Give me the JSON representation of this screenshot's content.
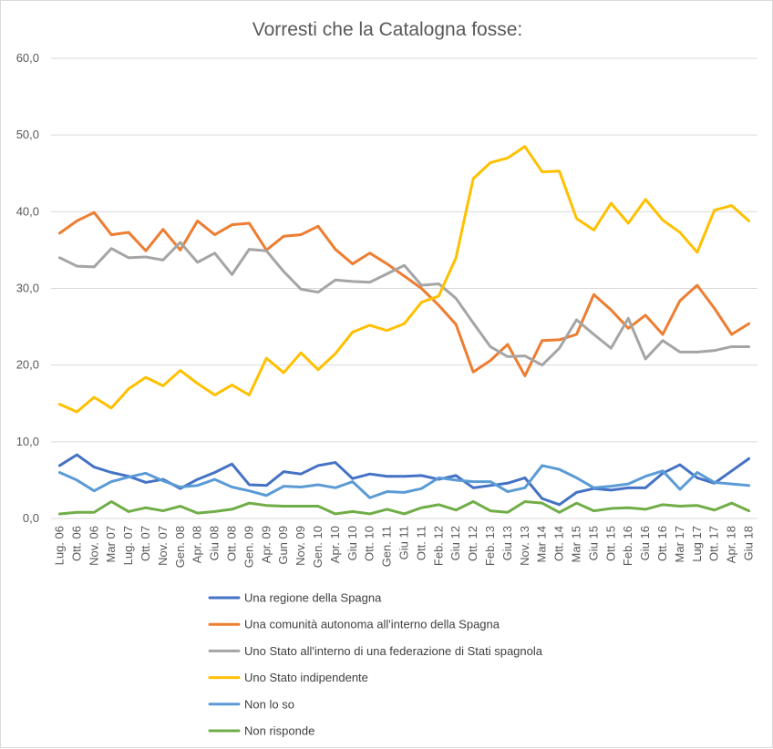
{
  "chart_data": {
    "type": "line",
    "title": "Vorresti che la Catalogna fosse:",
    "ylim": [
      0,
      60
    ],
    "y_ticks": [
      "0,0",
      "10,0",
      "20,0",
      "30,0",
      "40,0",
      "50,0",
      "60,0"
    ],
    "grid": "horizontal",
    "legend_position": "bottom",
    "categories": [
      "Lug. 06",
      "Ott. 06",
      "Nov. 06",
      "Mar 07",
      "Lug. 07",
      "Ott. 07",
      "Nov. 07",
      "Gen. 08",
      "Apr. 08",
      "Giu 08",
      "Ott. 08",
      "Gen. 09",
      "Apr. 09",
      "Gun 09",
      "Nov. 09",
      "Gen. 10",
      "Apr. 10",
      "Giu 10",
      "Ott. 10",
      "Gen. 11",
      "Giu 11",
      "Ott. 11",
      "Feb. 12",
      "Giu 12",
      "Ott. 12",
      "Feb. 13",
      "Giu 13",
      "Nov. 13",
      "Mar 14",
      "Ott. 14",
      "Mar 15",
      "Giu 15",
      "Ott. 15",
      "Feb. 16",
      "Giu 16",
      "Ott. 16",
      "Mar 17",
      "Lug 17",
      "Ott. 17",
      "Apr. 18",
      "Giu 18"
    ],
    "x": [
      "Lug. 06",
      "Ott. 06",
      "Nov. 06",
      "Mar 07",
      "Lug. 07",
      "Ott. 07",
      "Nov. 07",
      "Gen. 08",
      "Apr. 08",
      "Giu 08",
      "Ott. 08",
      "Gen. 09",
      "Apr. 09",
      "Gun 09",
      "Nov. 09",
      "Gen. 10",
      "Apr. 10",
      "Giu 10",
      "Ott. 10",
      "Gen. 11",
      "Giu 11",
      "Ott. 11",
      "Feb. 12",
      "Giu 12",
      "Ott. 12",
      "Feb. 13",
      "Giu 13",
      "Nov. 13",
      "Mar 14",
      "Ott. 14",
      "Mar 15",
      "Giu 15",
      "Ott. 15",
      "Feb. 16",
      "Giu 16",
      "Ott. 16",
      "Mar 17",
      "Lug 17",
      "Ott. 17",
      "Apr. 18",
      "Giu 18"
    ],
    "series": [
      {
        "name": "Una regione della Spagna",
        "color": "#4472C4",
        "values": [
          6.9,
          8.3,
          6.7,
          6.0,
          5.5,
          4.7,
          5.1,
          3.9,
          5.1,
          6.0,
          7.1,
          4.4,
          4.3,
          6.1,
          5.8,
          6.9,
          7.3,
          5.2,
          5.8,
          5.5,
          5.5,
          5.6,
          5.1,
          5.6,
          4.0,
          4.3,
          4.6,
          5.3,
          2.6,
          1.8,
          3.4,
          3.9,
          3.7,
          4.0,
          4.0,
          5.9,
          7.0,
          5.3,
          4.6,
          6.2,
          7.8
        ]
      },
      {
        "name": "Una comunità autonoma all'interno della Spagna",
        "color": "#ED7D31",
        "values": [
          37.2,
          38.8,
          39.9,
          37.0,
          37.3,
          34.9,
          37.7,
          35.0,
          38.8,
          37.0,
          38.3,
          38.5,
          35.0,
          36.8,
          37.0,
          38.1,
          35.1,
          33.2,
          34.6,
          33.2,
          31.6,
          30.0,
          27.8,
          25.3,
          19.1,
          20.6,
          22.7,
          18.6,
          23.2,
          23.3,
          24.0,
          29.2,
          27.2,
          24.8,
          26.5,
          24.0,
          28.4,
          30.4,
          27.4,
          24.0,
          25.4
        ]
      },
      {
        "name": "Uno Stato all'interno di una federazione di Stati spagnola",
        "color": "#A5A5A5",
        "values": [
          34.0,
          32.9,
          32.8,
          35.2,
          34.0,
          34.1,
          33.7,
          36.0,
          33.4,
          34.6,
          31.8,
          35.1,
          34.9,
          32.2,
          29.9,
          29.5,
          31.1,
          30.9,
          30.8,
          31.9,
          33.0,
          30.4,
          30.6,
          28.7,
          25.5,
          22.4,
          21.1,
          21.2,
          20.0,
          22.2,
          25.9,
          24.0,
          22.2,
          26.1,
          20.8,
          23.2,
          21.7,
          21.7,
          21.9,
          22.4,
          22.4
        ]
      },
      {
        "name": "Uno Stato indipendente",
        "color": "#FFC000",
        "values": [
          14.9,
          13.9,
          15.8,
          14.4,
          16.9,
          18.4,
          17.3,
          19.3,
          17.6,
          16.1,
          17.4,
          16.1,
          20.9,
          19.0,
          21.6,
          19.4,
          21.5,
          24.3,
          25.2,
          24.5,
          25.4,
          28.2,
          29.0,
          34.0,
          44.3,
          46.4,
          47.0,
          48.5,
          45.2,
          45.3,
          39.1,
          37.6,
          41.1,
          38.5,
          41.6,
          38.9,
          37.3,
          34.7,
          40.2,
          40.8,
          38.8
        ]
      },
      {
        "name": "Non lo so",
        "color": "#5B9BD5",
        "values": [
          6.0,
          5.0,
          3.6,
          4.8,
          5.4,
          5.9,
          4.9,
          4.1,
          4.3,
          5.1,
          4.1,
          3.6,
          3.0,
          4.2,
          4.1,
          4.4,
          4.0,
          4.8,
          2.7,
          3.5,
          3.4,
          3.9,
          5.3,
          5.0,
          4.8,
          4.8,
          3.5,
          4.0,
          6.9,
          6.4,
          5.3,
          4.0,
          4.2,
          4.5,
          5.5,
          6.2,
          3.8,
          6.0,
          4.7,
          4.5,
          4.3
        ]
      },
      {
        "name": "Non risponde",
        "color": "#70AD47",
        "values": [
          0.6,
          0.8,
          0.8,
          2.2,
          0.9,
          1.4,
          1.0,
          1.6,
          0.7,
          0.9,
          1.2,
          2.0,
          1.7,
          1.6,
          1.6,
          1.6,
          0.6,
          0.9,
          0.6,
          1.2,
          0.6,
          1.4,
          1.8,
          1.1,
          2.2,
          1.0,
          0.8,
          2.2,
          2.0,
          0.8,
          2.0,
          1.0,
          1.3,
          1.4,
          1.2,
          1.8,
          1.6,
          1.7,
          1.1,
          2.0,
          1.0
        ]
      }
    ]
  }
}
